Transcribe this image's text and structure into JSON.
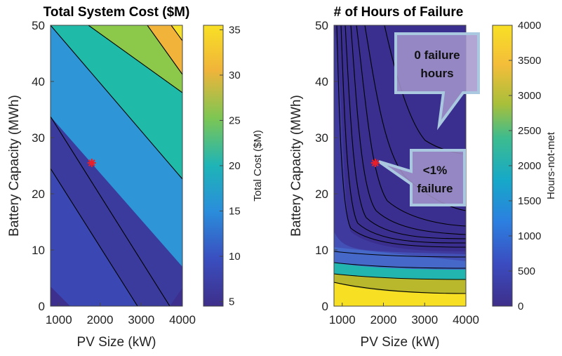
{
  "chart_data": [
    {
      "type": "contour",
      "title": "Total System Cost ($M)",
      "xlabel": "PV Size (kW)",
      "ylabel": "Battery Capacity (MWh)",
      "xlim": [
        800,
        4000
      ],
      "ylim": [
        0,
        50
      ],
      "xticks": [
        1000,
        2000,
        3000,
        4000
      ],
      "yticks": [
        0,
        10,
        20,
        30,
        40,
        50
      ],
      "colorbar": {
        "label": "Total Cost ($M)",
        "ticks": [
          5,
          10,
          15,
          20,
          25,
          30,
          35
        ],
        "range": [
          4.5,
          35.5
        ]
      },
      "contour_levels": [
        5,
        10,
        15,
        20,
        25,
        30,
        35
      ],
      "marker": {
        "symbol": "*",
        "color": "#e8202a",
        "x": 1800,
        "y": 25.5
      },
      "grid": false
    },
    {
      "type": "contour",
      "title": "# of Hours of Failure",
      "xlabel": "PV Size (kW)",
      "ylabel": "Battery Capacity (MWh)",
      "xlim": [
        800,
        4000
      ],
      "ylim": [
        0,
        50
      ],
      "xticks": [
        1000,
        2000,
        3000,
        4000
      ],
      "yticks": [
        0,
        10,
        20,
        30,
        40,
        50
      ],
      "colorbar": {
        "label": "Hours-not-met",
        "ticks": [
          0,
          500,
          1000,
          1500,
          2000,
          2500,
          3000,
          3500,
          4000
        ],
        "range": [
          0,
          4000
        ]
      },
      "marker": {
        "symbol": "*",
        "color": "#e8202a",
        "x": 1800,
        "y": 25.5
      },
      "annotations": [
        {
          "name": "zero-failure",
          "lines": [
            "0 failure",
            "hours"
          ]
        },
        {
          "name": "low-failure",
          "lines": [
            "<1%",
            "failure"
          ]
        }
      ],
      "grid": false
    }
  ]
}
